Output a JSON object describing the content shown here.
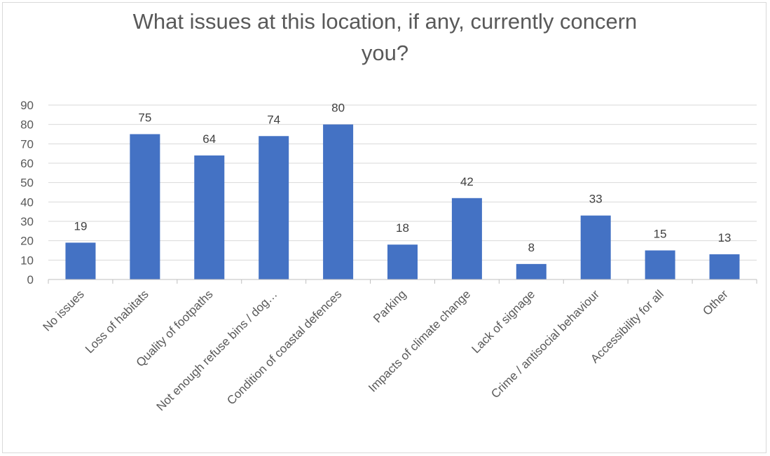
{
  "chart_data": {
    "type": "bar",
    "title_lines": [
      "What issues at this location, if any, currently concern",
      "you?"
    ],
    "categories": [
      "No issues",
      "Loss of habitats",
      "Quality of footpaths",
      "Not enough refuse bins / dog…",
      "Condition of coastal defences",
      "Parking",
      "Impacts of climate change",
      "Lack of signage",
      "Crime / antisocial behaviour",
      "Accessibility for all",
      "Other"
    ],
    "values": [
      19,
      75,
      64,
      74,
      80,
      18,
      42,
      8,
      33,
      15,
      13
    ],
    "ylim": [
      0,
      90
    ],
    "yticks": [
      0,
      10,
      20,
      30,
      40,
      50,
      60,
      70,
      80,
      90
    ],
    "grid": true,
    "legend": "none",
    "colors": {
      "bar": "#4472c4",
      "grid": "#d9d9d9",
      "axis": "#bfbfbf"
    }
  }
}
